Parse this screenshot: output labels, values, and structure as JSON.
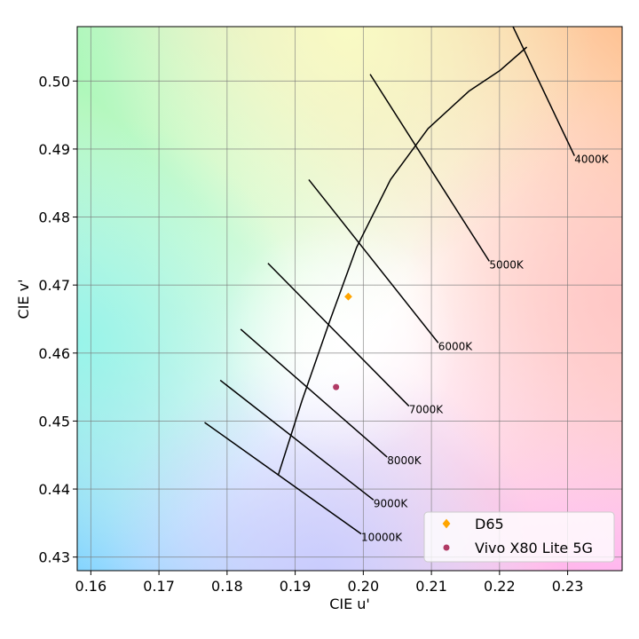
{
  "chart_data": {
    "type": "scatter",
    "xlabel": "CIE u'",
    "ylabel": "CIE v'",
    "xlim": [
      0.158,
      0.238
    ],
    "ylim": [
      0.428,
      0.508
    ],
    "xticks": [
      "0.16",
      "0.17",
      "0.18",
      "0.19",
      "0.20",
      "0.21",
      "0.22",
      "0.23"
    ],
    "yticks": [
      "0.43",
      "0.44",
      "0.45",
      "0.46",
      "0.47",
      "0.48",
      "0.49",
      "0.50"
    ],
    "grid": true,
    "legend_position": "bottom-right",
    "series": [
      {
        "name": "D65",
        "marker": "diamond",
        "color": "#ffa500",
        "x": [
          0.1978
        ],
        "y": [
          0.4683
        ]
      },
      {
        "name": "Vivo X80 Lite 5G",
        "marker": "circle",
        "color": "#b03a65",
        "x": [
          0.196
        ],
        "y": [
          0.455
        ]
      }
    ],
    "planckian_locus": {
      "u": [
        0.1875,
        0.191,
        0.195,
        0.199,
        0.204,
        0.2095,
        0.2155,
        0.22,
        0.224
      ],
      "v": [
        0.442,
        0.453,
        0.4645,
        0.4755,
        0.4855,
        0.493,
        0.4985,
        0.5015,
        0.505
      ]
    },
    "isotherms": [
      {
        "label": "4000K",
        "u0": 0.2215,
        "v0": 0.509,
        "u1": 0.231,
        "v1": 0.489
      },
      {
        "label": "5000K",
        "u0": 0.201,
        "v0": 0.501,
        "u1": 0.2185,
        "v1": 0.4735
      },
      {
        "label": "6000K",
        "u0": 0.192,
        "v0": 0.4855,
        "u1": 0.211,
        "v1": 0.4615
      },
      {
        "label": "7000K",
        "u0": 0.186,
        "v0": 0.4732,
        "u1": 0.2067,
        "v1": 0.4522
      },
      {
        "label": "8000K",
        "u0": 0.182,
        "v0": 0.4635,
        "u1": 0.2035,
        "v1": 0.4447
      },
      {
        "label": "9000K",
        "u0": 0.179,
        "v0": 0.456,
        "u1": 0.2015,
        "v1": 0.4384
      },
      {
        "label": "10000K",
        "u0": 0.1767,
        "v0": 0.4498,
        "u1": 0.1997,
        "v1": 0.4334
      }
    ],
    "background_colors": {
      "top_left": "#a6f7b5",
      "top_center": "#fbfdc4",
      "top_right": "#ffbf8e",
      "center": "#ffffff",
      "bottom_left": "#7dd2ff",
      "bottom_center": "#c5c9ff",
      "bottom_right": "#ffaeee",
      "mid_left": "#90f6ea",
      "mid_right": "#ffc4c4"
    }
  }
}
